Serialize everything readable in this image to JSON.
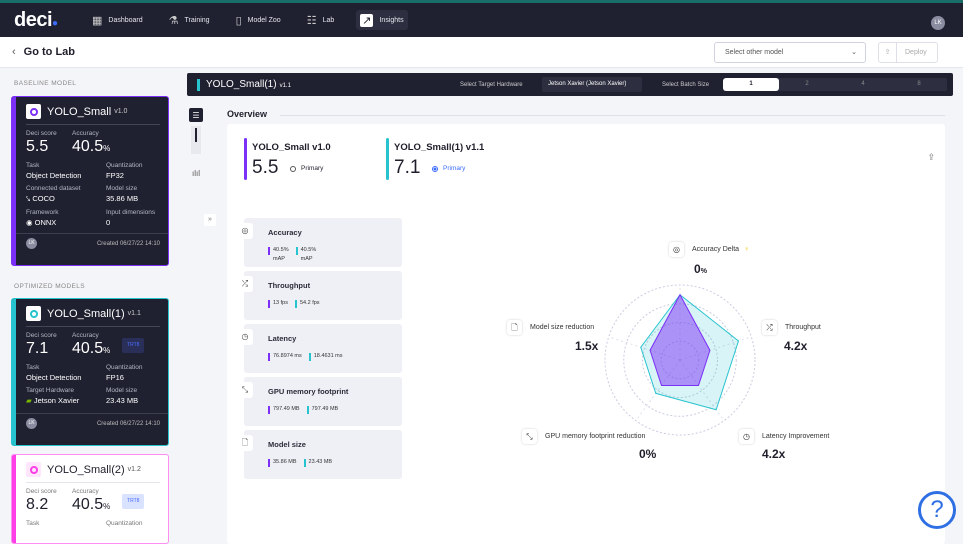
{
  "nav": {
    "logo": "deci",
    "items": [
      {
        "label": "Dashboard",
        "icon": "dashboard-icon"
      },
      {
        "label": "Training",
        "icon": "flask-icon"
      },
      {
        "label": "Model Zoo",
        "icon": "model-zoo-icon"
      },
      {
        "label": "Lab",
        "icon": "lab-icon"
      },
      {
        "label": "Insights",
        "icon": "insights-icon",
        "active": true
      }
    ],
    "user_initials": "LK"
  },
  "subheader": {
    "back_label": "Go to Lab",
    "select_placeholder": "Select other model",
    "deploy_label": "Deploy"
  },
  "sidebar": {
    "baseline_heading": "BASELINE MODEL",
    "optimized_heading": "OPTIMIZED MODELS",
    "baseline": {
      "name": "YOLO_Small",
      "version": "v1.0",
      "deci_score_label": "Deci score",
      "deci_score": "5.5",
      "accuracy_label": "Accuracy",
      "accuracy": "40.5",
      "accuracy_unit": "%",
      "task_label": "Task",
      "task": "Object Detection",
      "quant_label": "Quantization",
      "quant": "FP32",
      "dataset_label": "Connected dataset",
      "dataset": "COCO",
      "size_label": "Model size",
      "size": "35.86 MB",
      "framework_label": "Framework",
      "framework": "ONNX",
      "dims_label": "Input dimensions",
      "dims": "0",
      "initials": "LK",
      "created": "Created 06/27/22 14:10",
      "color": "#7b2ff7"
    },
    "optimized": [
      {
        "name": "YOLO_Small(1)",
        "version": "v1.1",
        "deci_score_label": "Deci score",
        "deci_score": "7.1",
        "accuracy_label": "Accuracy",
        "accuracy": "40.5",
        "accuracy_unit": "%",
        "badge": "TRT8",
        "task_label": "Task",
        "task": "Object Detection",
        "quant_label": "Quantization",
        "quant": "FP16",
        "hw_label": "Target Hardware",
        "hw": "Jetson Xavier",
        "size_label": "Model size",
        "size": "23.43 MB",
        "initials": "LK",
        "created": "Created 06/27/22 14:10",
        "color": "#27c3cf"
      },
      {
        "name": "YOLO_Small(2)",
        "version": "v1.2",
        "deci_score_label": "Deci score",
        "deci_score": "8.2",
        "accuracy_label": "Accuracy",
        "accuracy": "40.5",
        "accuracy_unit": "%",
        "badge": "TRT8",
        "task_label": "Task",
        "quant_label": "Quantization",
        "color": "#ff3ee8"
      }
    ]
  },
  "main": {
    "model_name": "YOLO_Small(1)",
    "model_version": "v1.1",
    "hw_label": "Select Target Hardware",
    "hw_value": "Jetson Xavier (Jetson Xavier)",
    "batch_label": "Select Batch Size",
    "batch_options": [
      "1",
      "2",
      "4",
      "8"
    ],
    "batch_selected": "1",
    "overview_title": "Overview",
    "models": [
      {
        "name": "YOLO_Small v1.0",
        "score": "5.5",
        "primary_label": "Primary",
        "primary": false
      },
      {
        "name": "YOLO_Small(1) v1.1",
        "score": "7.1",
        "primary_label": "Primary",
        "primary": true
      }
    ],
    "metrics": [
      {
        "title": "Accuracy",
        "icon": "target-icon",
        "a": "40.5%",
        "a_sub": "mAP",
        "b": "40.5%",
        "b_sub": "mAP"
      },
      {
        "title": "Throughput",
        "icon": "shuffle-icon",
        "a": "13 fps",
        "b": "54.2 fps"
      },
      {
        "title": "Latency",
        "icon": "clock-icon",
        "a": "76.8974 ms",
        "b": "18.4631 ms"
      },
      {
        "title": "GPU memory footprint",
        "icon": "compress-icon",
        "a": "797.49 MB",
        "b": "797.49 MB"
      },
      {
        "title": "Model size",
        "icon": "file-icon",
        "a": "35.86 MB",
        "b": "23.43 MB"
      }
    ],
    "radar": {
      "axes": [
        {
          "label": "Accuracy Delta",
          "value": "0",
          "unit": "%",
          "icon": "target-icon"
        },
        {
          "label": "Throughput",
          "value": "4.2x",
          "icon": "shuffle-icon"
        },
        {
          "label": "Latency Improvement",
          "value": "4.2x",
          "icon": "clock-icon"
        },
        {
          "label": "GPU memory footprint reduction",
          "value": "0%",
          "icon": "compress-icon"
        },
        {
          "label": "Model size reduction",
          "value": "1.5x",
          "icon": "file-icon"
        }
      ],
      "series": [
        {
          "values": [
            0.87,
            0.42,
            0.42,
            0.42,
            0.42
          ],
          "color": "#7b2ff7"
        },
        {
          "values": [
            0.87,
            0.82,
            0.82,
            0.55,
            0.55
          ],
          "color": "#27c3cf"
        }
      ]
    }
  }
}
